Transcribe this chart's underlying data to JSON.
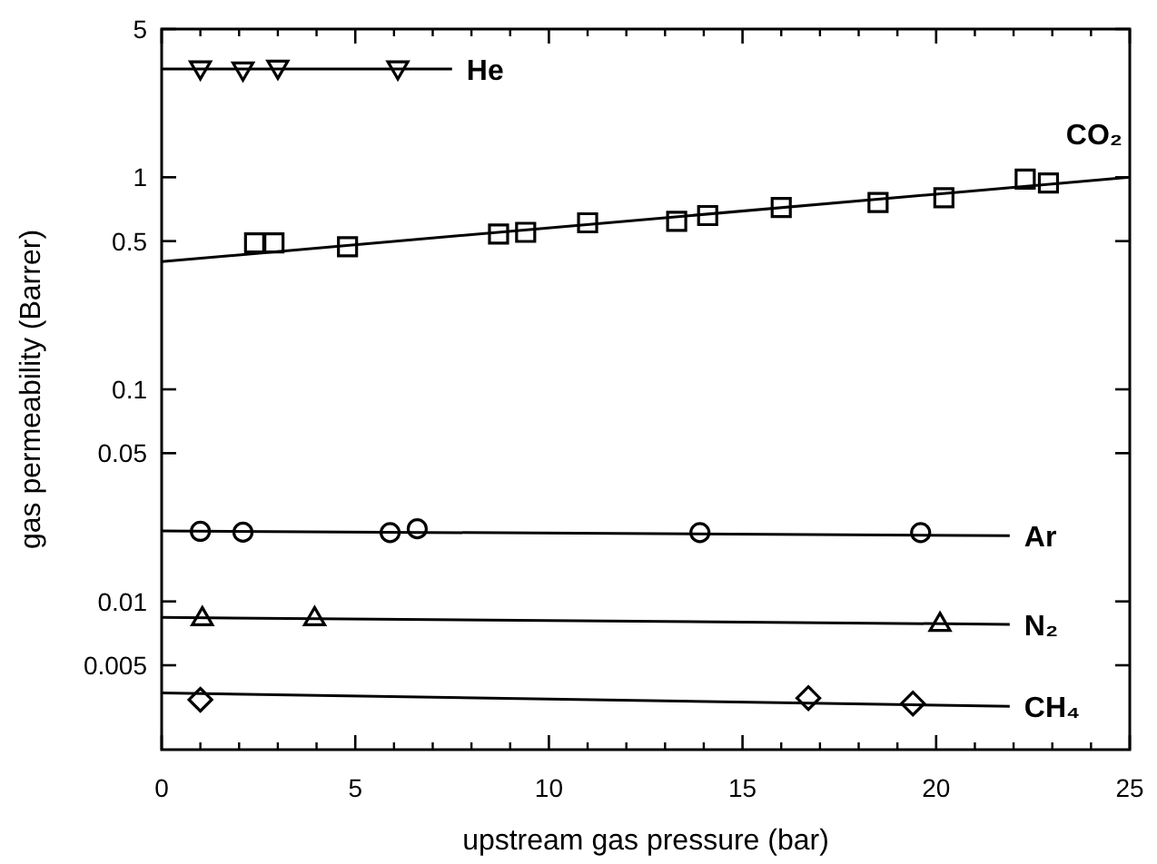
{
  "chart_data": {
    "type": "scatter",
    "xlabel": "upstream gas pressure (bar)",
    "ylabel": "gas permeability (Barrer)",
    "log": "y",
    "xlim": [
      0,
      25
    ],
    "ylim": [
      0.002,
      5
    ],
    "xticks": [
      0,
      5,
      10,
      15,
      20,
      25
    ],
    "yticks": [
      0.005,
      0.01,
      0.05,
      0.1,
      0.5,
      1,
      5
    ],
    "grid": false,
    "series": [
      {
        "name": "He",
        "marker": "triangle-down",
        "color": "#000000",
        "x": [
          1,
          2.1,
          3,
          6.1
        ],
        "values": [
          3.24,
          3.2,
          3.26,
          3.24
        ]
      },
      {
        "type": "line",
        "color": "#000000",
        "x": [
          0,
          7.5
        ],
        "values": [
          3.24,
          3.24
        ]
      },
      {
        "name": "CO₂",
        "marker": "square",
        "color": "#000000",
        "x": [
          2.4,
          2.9,
          4.8,
          8.7,
          9.4,
          11,
          13.3,
          14.1,
          16,
          18.5,
          20.2,
          22.3,
          22.9
        ],
        "values": [
          0.49,
          0.49,
          0.47,
          0.54,
          0.55,
          0.61,
          0.62,
          0.66,
          0.72,
          0.76,
          0.8,
          0.98,
          0.94
        ]
      },
      {
        "type": "line",
        "color": "#000000",
        "x": [
          0,
          25
        ],
        "values": [
          0.4,
          1
        ]
      },
      {
        "name": "Ar",
        "marker": "circle",
        "color": "#000000",
        "x": [
          1,
          2.1,
          5.9,
          6.6,
          13.9,
          19.6
        ],
        "values": [
          0.0214,
          0.0212,
          0.0211,
          0.022,
          0.0211,
          0.0211
        ]
      },
      {
        "type": "line",
        "color": "#000000",
        "x": [
          0,
          21.9
        ],
        "values": [
          0.0215,
          0.0204
        ]
      },
      {
        "name": "N₂",
        "marker": "triangle",
        "color": "#000000",
        "x": [
          1.05,
          3.95,
          20.1
        ],
        "values": [
          0.0084,
          0.0084,
          0.0079
        ]
      },
      {
        "type": "line",
        "color": "#000000",
        "x": [
          0,
          21.9
        ],
        "values": [
          0.0084,
          0.0078
        ]
      },
      {
        "name": "CH₄",
        "marker": "diamond",
        "color": "#000000",
        "x": [
          1,
          16.7,
          19.4
        ],
        "values": [
          0.00344,
          0.0035,
          0.0033
        ]
      },
      {
        "type": "line",
        "color": "#000000",
        "x": [
          0,
          21.9
        ],
        "values": [
          0.0037,
          0.0032
        ]
      }
    ]
  }
}
